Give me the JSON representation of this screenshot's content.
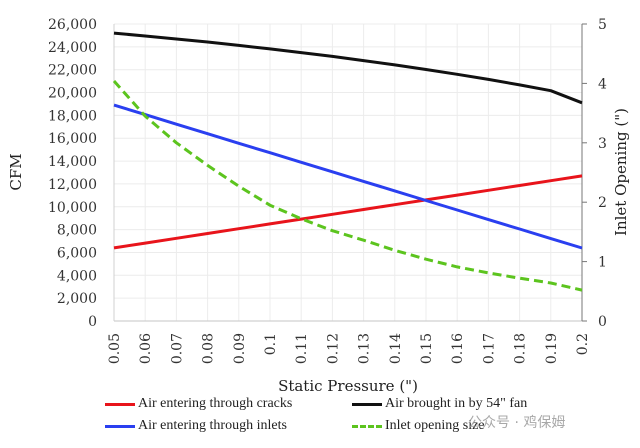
{
  "chart_data": {
    "type": "line",
    "title": "",
    "xlabel": "Static Pressure (\")",
    "ylabel": "CFM",
    "ylabel_right": "Inlet Opening (\")",
    "x": [
      0.05,
      0.06,
      0.07,
      0.08,
      0.09,
      0.1,
      0.11,
      0.12,
      0.13,
      0.14,
      0.15,
      0.16,
      0.17,
      0.18,
      0.19,
      0.2
    ],
    "x_tick_labels": [
      "0.05",
      "0.06",
      "0.07",
      "0.08",
      "0.09",
      "0.1",
      "0.11",
      "0.12",
      "0.13",
      "0.14",
      "0.15",
      "0.16",
      "0.17",
      "0.18",
      "0.19",
      "0.2"
    ],
    "ylim": [
      0,
      26000
    ],
    "y_tick_labels": [
      "0",
      "2,000",
      "4,000",
      "6,000",
      "8,000",
      "10,000",
      "12,000",
      "14,000",
      "16,000",
      "18,000",
      "20,000",
      "22,000",
      "24,000",
      "26,000"
    ],
    "ylim_right": [
      0,
      5
    ],
    "y_right_tick_labels": [
      "0",
      "1",
      "2",
      "3",
      "4",
      "5"
    ],
    "grid": true,
    "legend_position": "bottom",
    "series": [
      {
        "name": "Air entering through cracks",
        "axis": "left",
        "color": "#e8141b",
        "dash": false,
        "values": [
          6400,
          6820,
          7240,
          7660,
          8080,
          8500,
          8920,
          9340,
          9760,
          10180,
          10600,
          11020,
          11440,
          11860,
          12280,
          12700
        ]
      },
      {
        "name": "Air brought in by 54\" fan",
        "axis": "left",
        "color": "#111111",
        "dash": false,
        "values": [
          25200,
          24950,
          24690,
          24420,
          24130,
          23820,
          23500,
          23160,
          22800,
          22420,
          22020,
          21600,
          21150,
          20670,
          20160,
          19100
        ]
      },
      {
        "name": "Air entering through inlets",
        "axis": "left",
        "color": "#2a3ff0",
        "dash": false,
        "values": [
          18900,
          18070,
          17230,
          16400,
          15560,
          14730,
          13890,
          13060,
          12220,
          11390,
          10550,
          9720,
          8880,
          8050,
          7210,
          6390
        ]
      },
      {
        "name": "Inlet opening size",
        "axis": "right",
        "color": "#5cc41e",
        "dash": true,
        "values": [
          4.04,
          3.45,
          3.0,
          2.62,
          2.27,
          1.95,
          1.72,
          1.52,
          1.36,
          1.19,
          1.04,
          0.91,
          0.81,
          0.72,
          0.64,
          0.52
        ]
      }
    ]
  },
  "watermark": "公众号 · 鸡保姆"
}
